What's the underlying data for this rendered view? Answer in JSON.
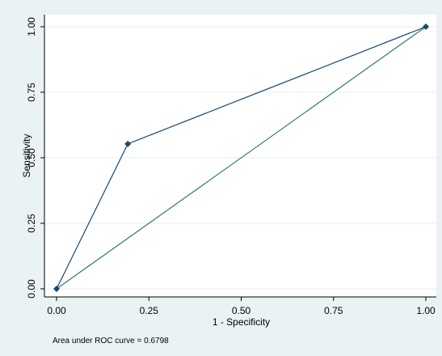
{
  "chart_data": {
    "type": "line",
    "xlabel": "1 - Specificity",
    "ylabel": "Sensitivity",
    "xlim": [
      0,
      1
    ],
    "ylim": [
      0,
      1
    ],
    "x_ticks": [
      0,
      0.25,
      0.5,
      0.75,
      1
    ],
    "x_tick_labels": [
      "0.00",
      "0.25",
      "0.50",
      "0.75",
      "1.00"
    ],
    "y_ticks": [
      0,
      0.25,
      0.5,
      0.75,
      1
    ],
    "y_tick_labels": [
      "0.00",
      "0.25",
      "0.50",
      "0.75",
      "1.00"
    ],
    "grid": true,
    "series": [
      {
        "x": [
          0,
          0.193,
          1
        ],
        "y": [
          0,
          0.553,
          1
        ],
        "color": "#1a476f",
        "markers": true
      },
      {
        "x": [
          0,
          1
        ],
        "y": [
          0,
          1
        ],
        "color": "#2e7a64",
        "markers": false
      }
    ],
    "annotation": "Area under ROC curve = 0.6798"
  },
  "colors": {
    "background": "#eaf2f3",
    "plot_area": "#ffffff",
    "grid": "#e8eef0",
    "axis": "#000000"
  }
}
